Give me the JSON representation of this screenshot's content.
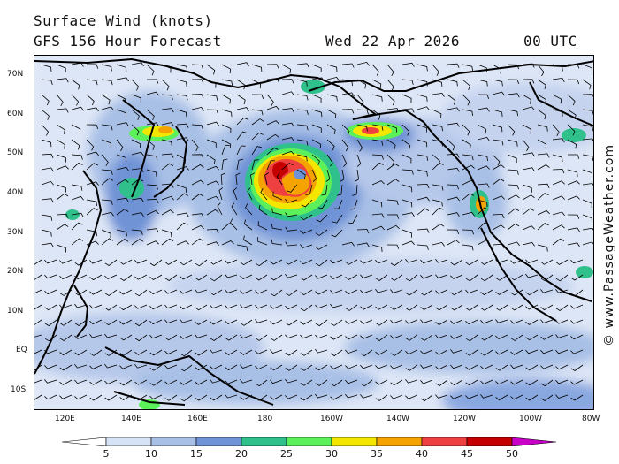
{
  "header": {
    "title": "Surface Wind (knots)",
    "subtitle": "GFS 156 Hour Forecast",
    "date": "Wed 22 Apr 2026",
    "time": "00 UTC"
  },
  "map": {
    "region": "North Pacific",
    "lat_labels": [
      "70N",
      "60N",
      "50N",
      "40N",
      "30N",
      "20N",
      "10N",
      "EQ",
      "10S"
    ],
    "lon_labels": [
      "120E",
      "140E",
      "160E",
      "180",
      "160W",
      "140W",
      "120W",
      "100W",
      "80W"
    ],
    "features": [
      "wind-barbs",
      "wind-speed-shading",
      "coastlines",
      "storm-system"
    ]
  },
  "credit": "© www.PassageWeather.com",
  "legend": {
    "labels": [
      "5",
      "10",
      "15",
      "20",
      "25",
      "30",
      "35",
      "40",
      "45",
      "50"
    ],
    "colors": [
      "#ffffff",
      "#d6e2f6",
      "#a8c0e6",
      "#6f93d6",
      "#2fc08c",
      "#5cf05a",
      "#f5e600",
      "#f5a300",
      "#ee4040",
      "#c40000",
      "#c800c8"
    ]
  }
}
